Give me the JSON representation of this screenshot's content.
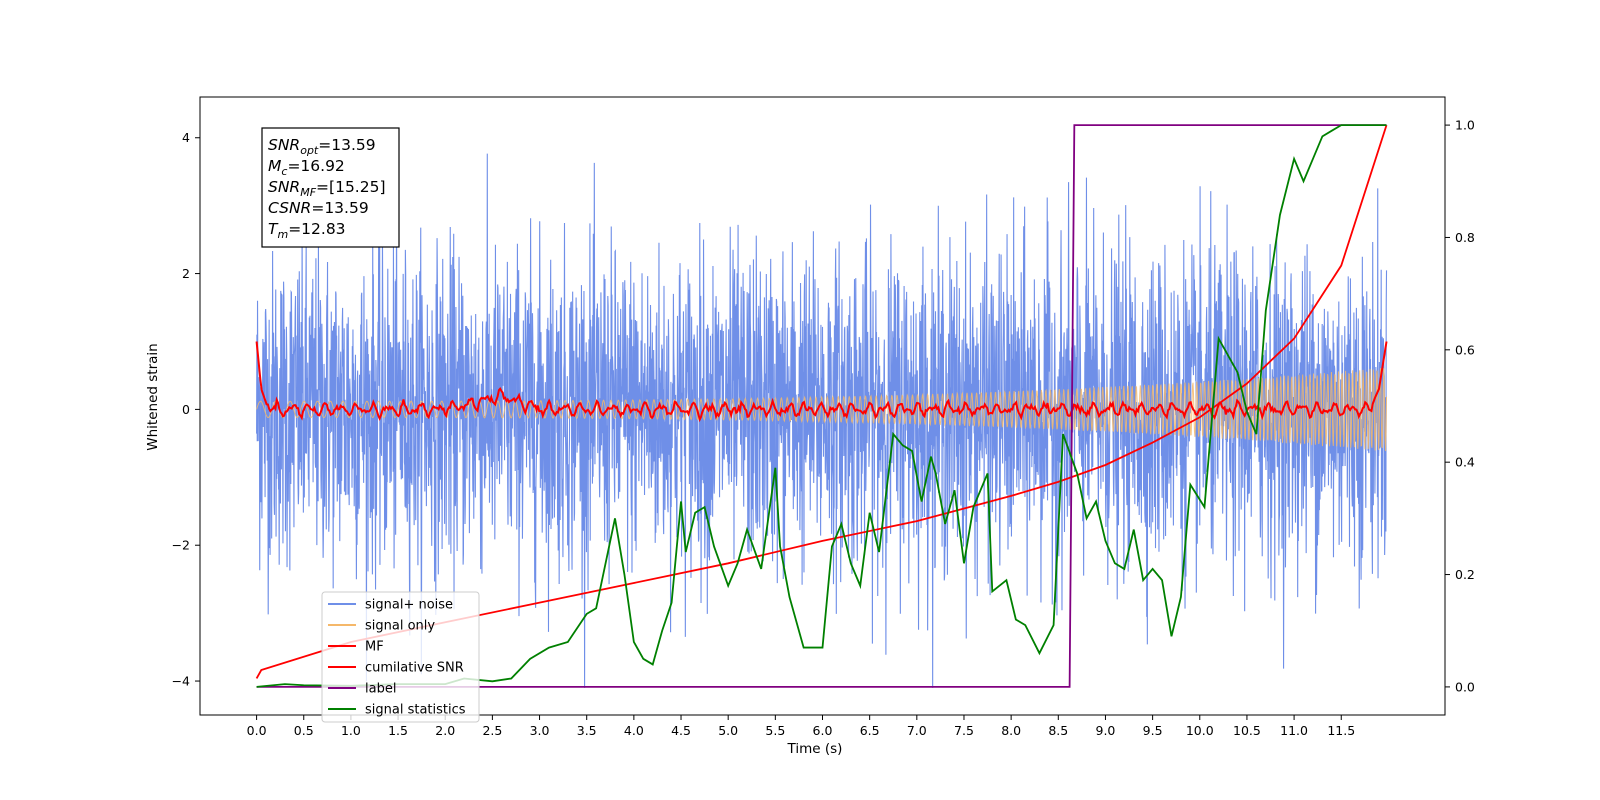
{
  "chart_data": {
    "type": "line",
    "xlabel": "Time (s)",
    "ylabel": "Whitened strain",
    "xlim": [
      -0.6,
      12.6
    ],
    "ylim": [
      -4.5,
      4.6
    ],
    "y2lim": [
      -0.05,
      1.05
    ],
    "x_ticks": [
      "0.0",
      "0.5",
      "1.0",
      "1.5",
      "2.0",
      "2.5",
      "3.0",
      "3.5",
      "4.0",
      "4.5",
      "5.0",
      "5.5",
      "6.0",
      "6.5",
      "7.0",
      "7.5",
      "8.0",
      "8.5",
      "9.0",
      "9.5",
      "10.0",
      "10.5",
      "11.0",
      "11.5"
    ],
    "y_ticks": [
      "−4",
      "−2",
      "0",
      "2",
      "4"
    ],
    "y2_ticks": [
      "0.0",
      "0.2",
      "0.4",
      "0.6",
      "0.8",
      "1.0"
    ],
    "annotation": [
      {
        "sym": "SNR",
        "sub": "opt",
        "value": "=13.59"
      },
      {
        "sym": "M",
        "sub": "c",
        "value": "=16.92"
      },
      {
        "sym": "SNR",
        "sub": "MF",
        "value": "=[15.25]"
      },
      {
        "sym": "CSNR",
        "sub": "",
        "value": "=13.59"
      },
      {
        "sym": "T",
        "sub": "m",
        "value": "=12.83"
      }
    ],
    "legend_position": "lower-left",
    "series": [
      {
        "name": "signal+ noise",
        "color": "#6f8fe8",
        "axis": "left",
        "x_range": [
          0,
          11.98
        ],
        "noise_std": 1.0,
        "y_range": [
          -4.1,
          4.2
        ]
      },
      {
        "name": "signal only",
        "color": "#f5b86a",
        "axis": "left",
        "x_range": [
          0,
          11.98
        ],
        "amplitude_start": 0.12,
        "amplitude_end": 0.62
      },
      {
        "name": "MF",
        "color": "#ff0000",
        "axis": "left",
        "x": [
          0,
          0.05,
          0.1,
          0.2,
          0.5,
          1.0,
          2.0,
          2.6,
          3.0,
          4.0,
          5.0,
          6.0,
          7.0,
          8.0,
          9.0,
          10.0,
          11.0,
          11.8,
          11.9,
          11.98
        ],
        "y": [
          1.0,
          0.3,
          0.1,
          0.0,
          0.0,
          0.0,
          0.0,
          0.2,
          0.0,
          0.0,
          0.0,
          0.0,
          0.0,
          0.0,
          0.0,
          0.0,
          0.0,
          0.0,
          0.3,
          1.0
        ]
      },
      {
        "name": "cumilative SNR",
        "color": "#ff0000",
        "axis": "right",
        "x": [
          0,
          0.05,
          1,
          2,
          3,
          4,
          5,
          6,
          7,
          8,
          8.5,
          9,
          9.5,
          10,
          10.5,
          11,
          11.5,
          11.98
        ],
        "y": [
          0.015,
          0.03,
          0.08,
          0.115,
          0.15,
          0.185,
          0.22,
          0.26,
          0.295,
          0.34,
          0.365,
          0.395,
          0.435,
          0.48,
          0.54,
          0.62,
          0.75,
          1.0
        ]
      },
      {
        "name": "label",
        "color": "#800080",
        "axis": "right",
        "x": [
          0,
          8.62,
          8.67,
          11.98
        ],
        "y": [
          0,
          0,
          1,
          1
        ]
      },
      {
        "name": "signal statistics",
        "color": "#008000",
        "axis": "right",
        "x": [
          0,
          0.3,
          0.5,
          1.0,
          1.5,
          2.0,
          2.2,
          2.5,
          2.7,
          2.9,
          3.1,
          3.3,
          3.5,
          3.6,
          3.8,
          3.9,
          4.0,
          4.1,
          4.2,
          4.3,
          4.4,
          4.5,
          4.55,
          4.65,
          4.75,
          4.85,
          5.0,
          5.1,
          5.2,
          5.35,
          5.5,
          5.55,
          5.65,
          5.8,
          6.0,
          6.1,
          6.2,
          6.3,
          6.4,
          6.5,
          6.6,
          6.75,
          6.85,
          6.95,
          7.05,
          7.15,
          7.2,
          7.3,
          7.4,
          7.5,
          7.6,
          7.75,
          7.8,
          7.95,
          8.05,
          8.15,
          8.3,
          8.45,
          8.55,
          8.7,
          8.8,
          8.9,
          9.0,
          9.1,
          9.2,
          9.3,
          9.4,
          9.5,
          9.6,
          9.7,
          9.8,
          9.9,
          10.05,
          10.2,
          10.3,
          10.4,
          10.5,
          10.6,
          10.7,
          10.85,
          11.0,
          11.1,
          11.2,
          11.3,
          11.4,
          11.5,
          11.6,
          11.75,
          11.85,
          11.98
        ],
        "y": [
          0.0,
          0.005,
          0.003,
          0.002,
          0.005,
          0.005,
          0.015,
          0.01,
          0.015,
          0.05,
          0.07,
          0.08,
          0.13,
          0.14,
          0.3,
          0.2,
          0.08,
          0.05,
          0.04,
          0.1,
          0.15,
          0.33,
          0.24,
          0.31,
          0.32,
          0.25,
          0.18,
          0.22,
          0.28,
          0.21,
          0.39,
          0.25,
          0.16,
          0.07,
          0.07,
          0.25,
          0.29,
          0.22,
          0.18,
          0.31,
          0.24,
          0.45,
          0.43,
          0.42,
          0.33,
          0.41,
          0.38,
          0.29,
          0.35,
          0.22,
          0.32,
          0.38,
          0.17,
          0.19,
          0.12,
          0.11,
          0.06,
          0.11,
          0.45,
          0.38,
          0.3,
          0.33,
          0.26,
          0.22,
          0.21,
          0.28,
          0.19,
          0.21,
          0.19,
          0.09,
          0.16,
          0.36,
          0.32,
          0.62,
          0.59,
          0.56,
          0.49,
          0.45,
          0.67,
          0.84,
          0.94,
          0.9,
          0.94,
          0.98,
          0.99,
          1.0,
          1.0,
          1.0,
          1.0,
          1.0
        ]
      }
    ]
  }
}
